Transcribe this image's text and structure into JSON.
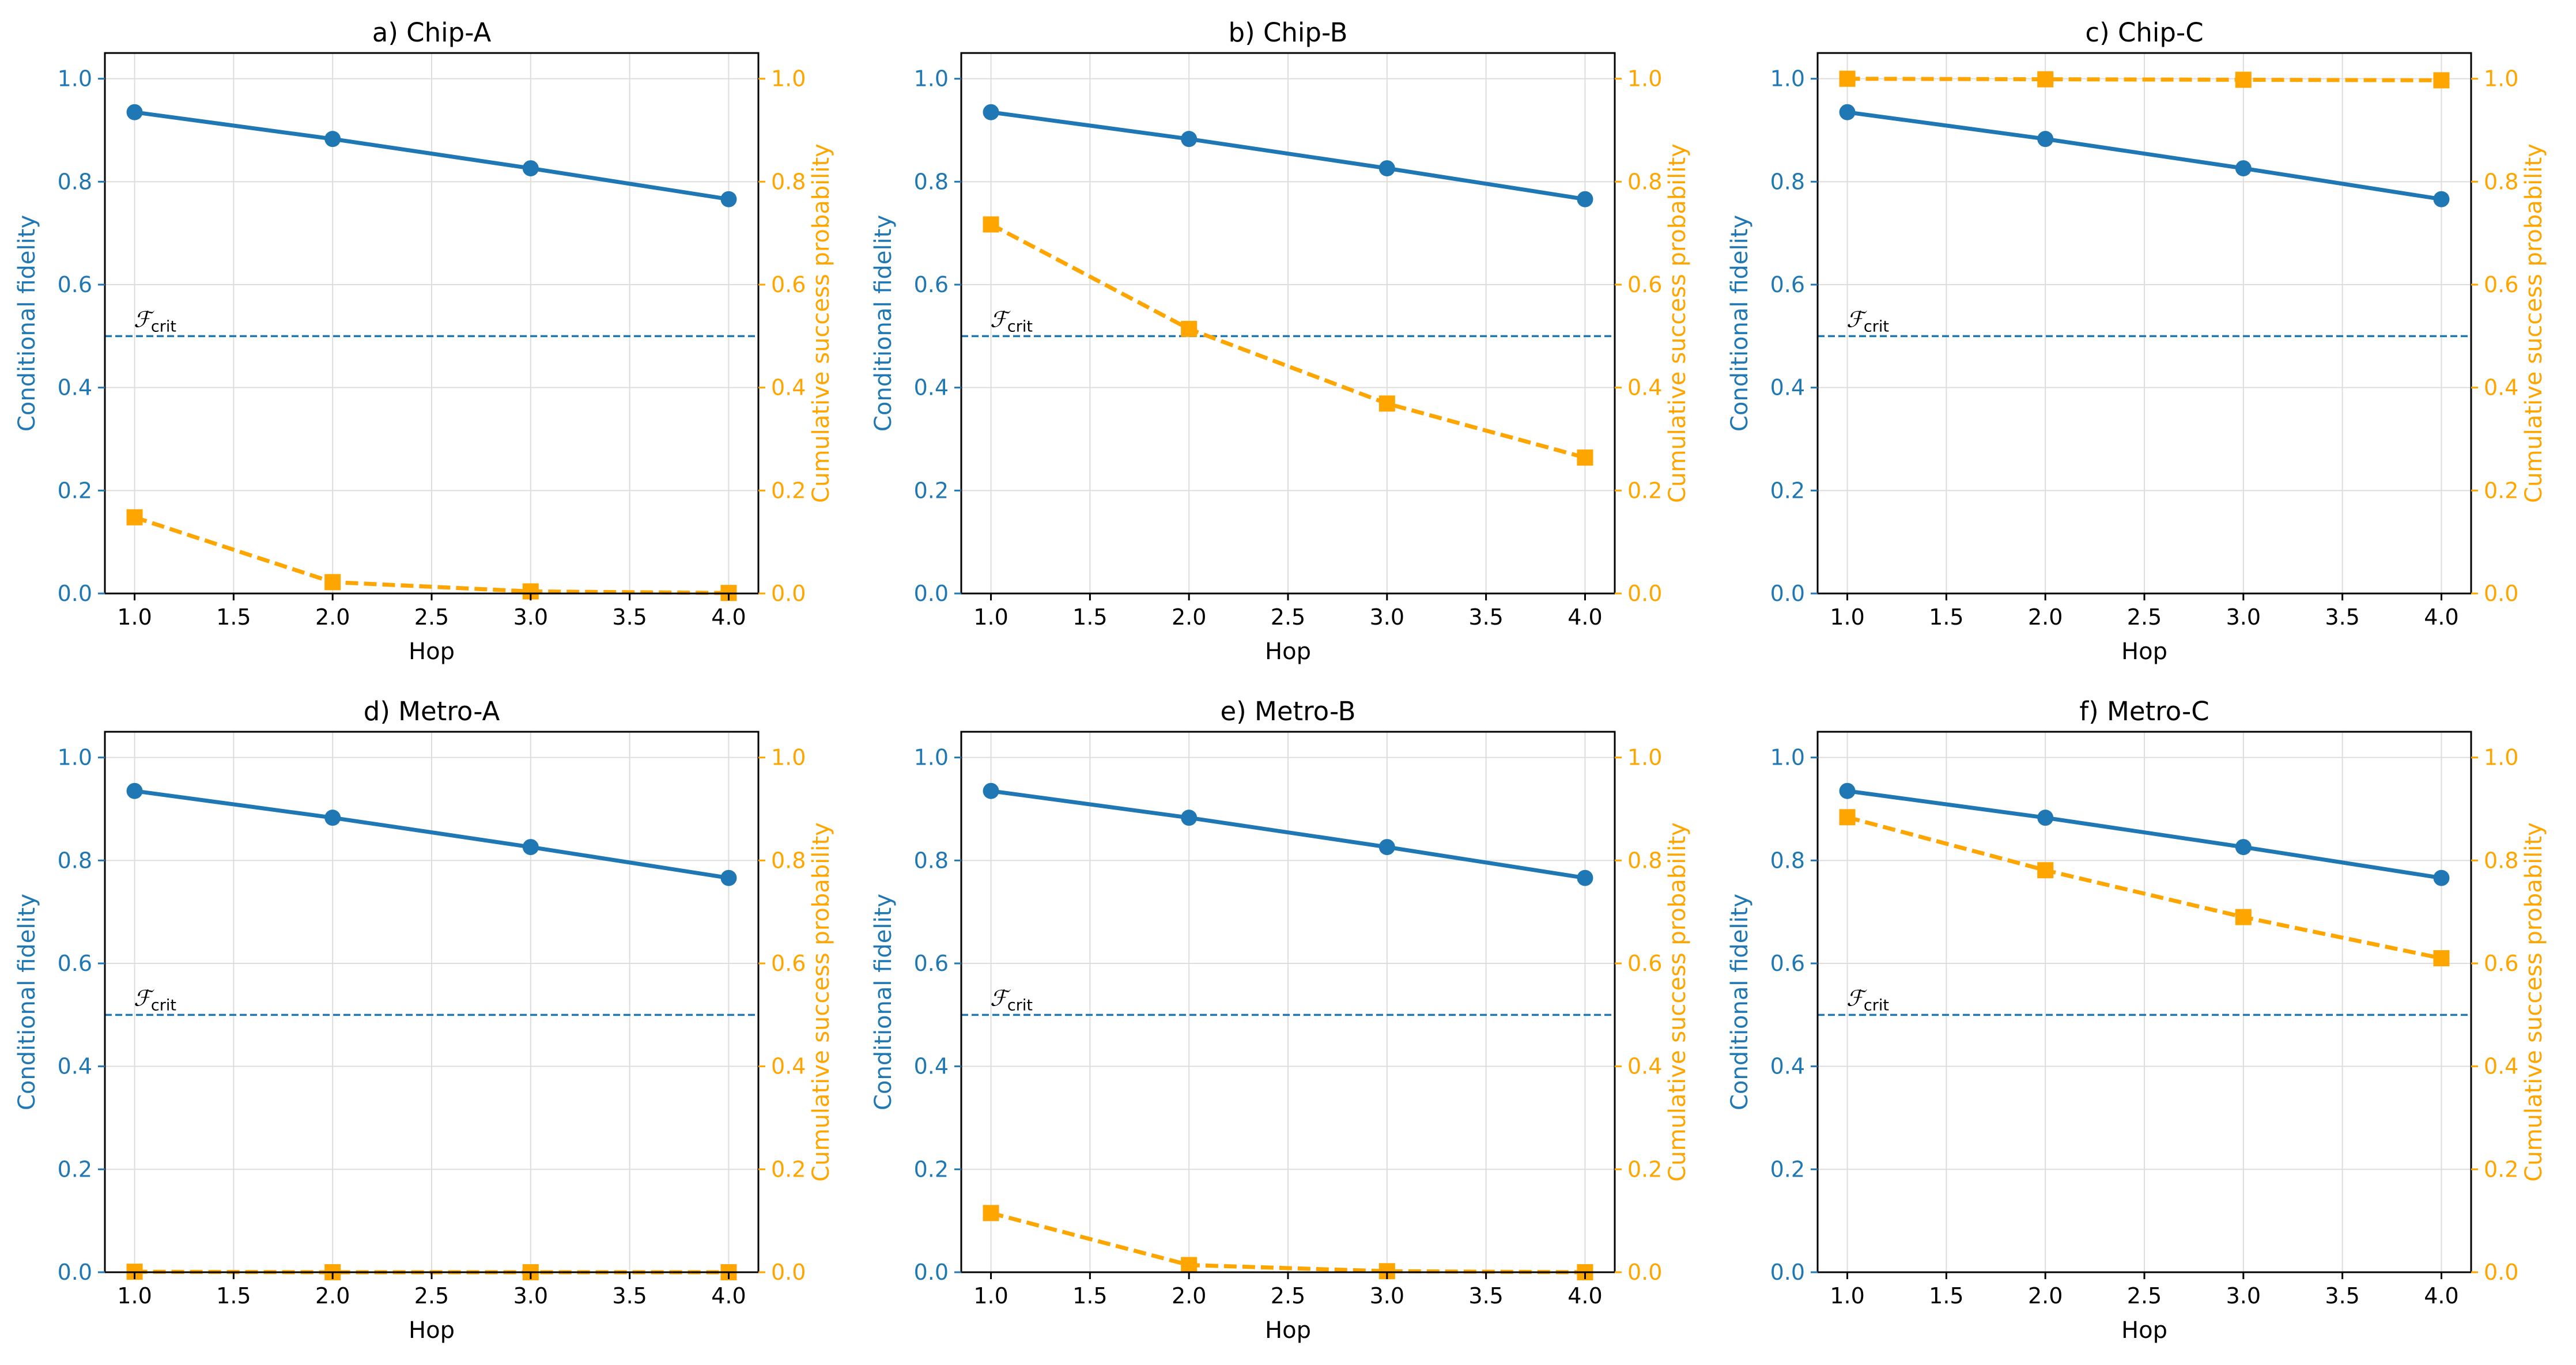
{
  "colors": {
    "fidelity": "#1f77b4",
    "success": "#ffa500",
    "grid": "#dddddd",
    "axis": "#000000"
  },
  "common": {
    "xlabel": "Hop",
    "ylabel_left": "Conditional fidelity",
    "ylabel_right": "Cumulative success probability",
    "threshold_label_main": "ℱ",
    "threshold_label_sub": "crit",
    "threshold_value": 0.5,
    "x_ticks": [
      "1.0",
      "1.5",
      "2.0",
      "2.5",
      "3.0",
      "3.5",
      "4.0"
    ],
    "y_ticks": [
      "0.0",
      "0.2",
      "0.4",
      "0.6",
      "0.8",
      "1.0"
    ]
  },
  "chart_data": [
    {
      "type": "line",
      "title": "a) Chip-A",
      "xlabel": "Hop",
      "ylabel": "Conditional fidelity",
      "ylabel_right": "Cumulative success probability",
      "xlim": [
        0.85,
        4.15
      ],
      "ylim": [
        0,
        1.05
      ],
      "ylim_right": [
        0,
        1.05
      ],
      "grid": true,
      "x": [
        1,
        2,
        3,
        4
      ],
      "series": [
        {
          "name": "Conditional fidelity",
          "axis": "left",
          "style": "solid-circle",
          "values": [
            0.935,
            0.883,
            0.826,
            0.766
          ]
        },
        {
          "name": "Cumulative success probability",
          "axis": "right",
          "style": "dashed-square",
          "values": [
            0.148,
            0.022,
            0.004,
            0.001
          ]
        }
      ],
      "hline": {
        "y": 0.5,
        "label": "ℱcrit"
      }
    },
    {
      "type": "line",
      "title": "b) Chip-B",
      "xlabel": "Hop",
      "ylabel": "Conditional fidelity",
      "ylabel_right": "Cumulative success probability",
      "xlim": [
        0.85,
        4.15
      ],
      "ylim": [
        0,
        1.05
      ],
      "ylim_right": [
        0,
        1.05
      ],
      "grid": true,
      "x": [
        1,
        2,
        3,
        4
      ],
      "series": [
        {
          "name": "Conditional fidelity",
          "axis": "left",
          "style": "solid-circle",
          "values": [
            0.935,
            0.883,
            0.826,
            0.766
          ]
        },
        {
          "name": "Cumulative success probability",
          "axis": "right",
          "style": "dashed-square",
          "values": [
            0.717,
            0.514,
            0.369,
            0.264
          ]
        }
      ],
      "hline": {
        "y": 0.5,
        "label": "ℱcrit"
      }
    },
    {
      "type": "line",
      "title": "c) Chip-C",
      "xlabel": "Hop",
      "ylabel": "Conditional fidelity",
      "ylabel_right": "Cumulative success probability",
      "xlim": [
        0.85,
        4.15
      ],
      "ylim": [
        0,
        1.05
      ],
      "ylim_right": [
        0,
        1.05
      ],
      "grid": true,
      "x": [
        1,
        2,
        3,
        4
      ],
      "series": [
        {
          "name": "Conditional fidelity",
          "axis": "left",
          "style": "solid-circle",
          "values": [
            0.935,
            0.883,
            0.826,
            0.766
          ]
        },
        {
          "name": "Cumulative success probability",
          "axis": "right",
          "style": "dashed-square",
          "values": [
            1.0,
            0.999,
            0.998,
            0.997
          ]
        }
      ],
      "hline": {
        "y": 0.5,
        "label": "ℱcrit"
      }
    },
    {
      "type": "line",
      "title": "d) Metro-A",
      "xlabel": "Hop",
      "ylabel": "Conditional fidelity",
      "ylabel_right": "Cumulative success probability",
      "xlim": [
        0.85,
        4.15
      ],
      "ylim": [
        0,
        1.05
      ],
      "ylim_right": [
        0,
        1.05
      ],
      "grid": true,
      "x": [
        1,
        2,
        3,
        4
      ],
      "series": [
        {
          "name": "Conditional fidelity",
          "axis": "left",
          "style": "solid-circle",
          "values": [
            0.935,
            0.883,
            0.826,
            0.766
          ]
        },
        {
          "name": "Cumulative success probability",
          "axis": "right",
          "style": "dashed-square",
          "values": [
            0.001,
            0.0,
            0.0,
            0.0
          ]
        }
      ],
      "hline": {
        "y": 0.5,
        "label": "ℱcrit"
      }
    },
    {
      "type": "line",
      "title": "e) Metro-B",
      "xlabel": "Hop",
      "ylabel": "Conditional fidelity",
      "ylabel_right": "Cumulative success probability",
      "xlim": [
        0.85,
        4.15
      ],
      "ylim": [
        0,
        1.05
      ],
      "ylim_right": [
        0,
        1.05
      ],
      "grid": true,
      "x": [
        1,
        2,
        3,
        4
      ],
      "series": [
        {
          "name": "Conditional fidelity",
          "axis": "left",
          "style": "solid-circle",
          "values": [
            0.935,
            0.883,
            0.826,
            0.766
          ]
        },
        {
          "name": "Cumulative success probability",
          "axis": "right",
          "style": "dashed-square",
          "values": [
            0.115,
            0.014,
            0.002,
            0.0
          ]
        }
      ],
      "hline": {
        "y": 0.5,
        "label": "ℱcrit"
      }
    },
    {
      "type": "line",
      "title": "f) Metro-C",
      "xlabel": "Hop",
      "ylabel": "Conditional fidelity",
      "ylabel_right": "Cumulative success probability",
      "xlim": [
        0.85,
        4.15
      ],
      "ylim": [
        0,
        1.05
      ],
      "ylim_right": [
        0,
        1.05
      ],
      "grid": true,
      "x": [
        1,
        2,
        3,
        4
      ],
      "series": [
        {
          "name": "Conditional fidelity",
          "axis": "left",
          "style": "solid-circle",
          "values": [
            0.935,
            0.883,
            0.826,
            0.766
          ]
        },
        {
          "name": "Cumulative success probability",
          "axis": "right",
          "style": "dashed-square",
          "values": [
            0.884,
            0.781,
            0.69,
            0.61
          ]
        }
      ],
      "hline": {
        "y": 0.5,
        "label": "ℱcrit"
      }
    }
  ]
}
